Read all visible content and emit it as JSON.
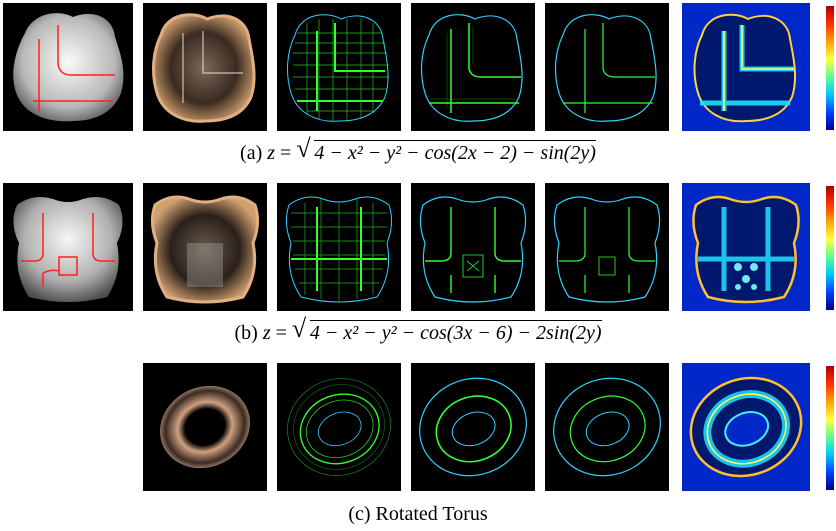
{
  "figure": {
    "rows": [
      {
        "id": "a",
        "caption_label": "(a)",
        "caption_lhs": "z",
        "caption_eq": "=",
        "caption_radicand": "4 − x² − y² − cos(2x − 2) − sin(2y)"
      },
      {
        "id": "b",
        "caption_label": "(b)",
        "caption_lhs": "z",
        "caption_eq": "=",
        "caption_radicand": "4 − x² − y² − cos(3x − 6) − 2sin(2y)"
      },
      {
        "id": "c",
        "caption_text": "(c) Rotated Torus"
      }
    ],
    "colors": {
      "background": "#000000",
      "highlight_curves": "#ff2020",
      "edge_green": "#30ff30",
      "edge_cyan": "#30d0ff",
      "heatmap_low": "#0028c8",
      "heatmap_high": "#ff2000"
    }
  }
}
